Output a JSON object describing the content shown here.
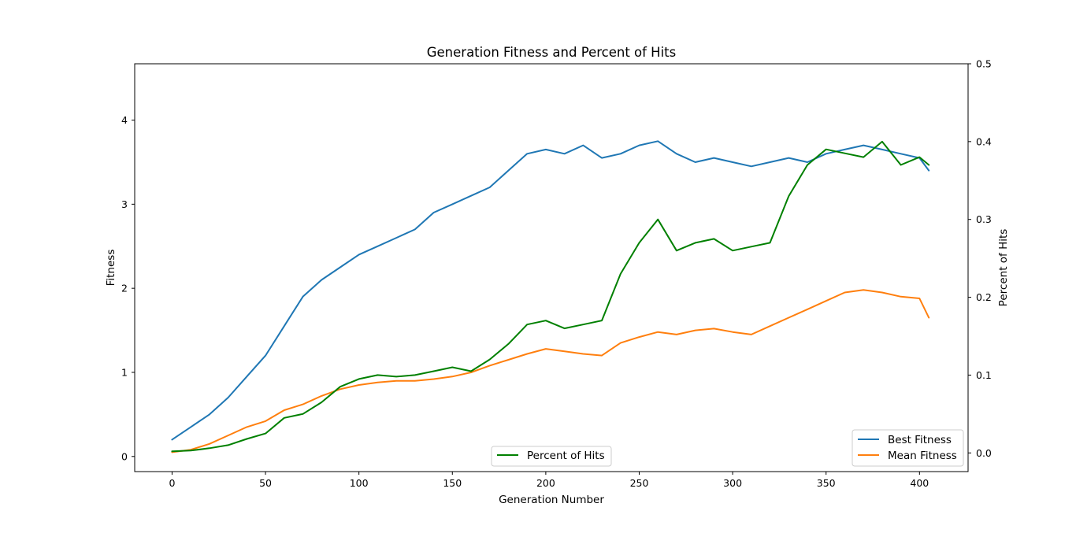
{
  "chart_data": {
    "type": "line",
    "title": "Generation Fitness and Percent of Hits",
    "xlabel": "Generation Number",
    "ylabel": "Fitness",
    "ylabel_right": "Percent of Hits",
    "xlim": [
      -20,
      426
    ],
    "ylim": [
      -0.18,
      4.67
    ],
    "ylim_right": [
      -0.024,
      0.5
    ],
    "x_ticks": [
      0,
      50,
      100,
      150,
      200,
      250,
      300,
      350,
      400
    ],
    "y_ticks": [
      0,
      1,
      2,
      3,
      4
    ],
    "y_ticks_right": [
      0.0,
      0.1,
      0.2,
      0.3,
      0.4,
      0.5
    ],
    "grid": false,
    "legend_left_axis": {
      "placement": "lower-right",
      "entries": [
        "Best Fitness",
        "Mean Fitness"
      ]
    },
    "legend_right_axis": {
      "placement": "lower-center",
      "entries": [
        "Percent of Hits"
      ]
    },
    "series": [
      {
        "name": "Best Fitness",
        "axis": "left",
        "color": "#1f77b4",
        "x": [
          0,
          10,
          20,
          30,
          40,
          50,
          60,
          70,
          80,
          90,
          100,
          110,
          120,
          130,
          140,
          150,
          160,
          170,
          180,
          190,
          200,
          210,
          220,
          230,
          240,
          250,
          260,
          270,
          280,
          290,
          300,
          310,
          320,
          330,
          340,
          350,
          360,
          370,
          380,
          390,
          400,
          405
        ],
        "y": [
          0.2,
          0.35,
          0.5,
          0.7,
          0.95,
          1.2,
          1.55,
          1.9,
          2.1,
          2.25,
          2.4,
          2.5,
          2.6,
          2.7,
          2.9,
          3.0,
          3.1,
          3.2,
          3.4,
          3.6,
          3.65,
          3.6,
          3.7,
          3.55,
          3.6,
          3.7,
          3.75,
          3.6,
          3.5,
          3.55,
          3.5,
          3.45,
          3.5,
          3.55,
          3.5,
          3.6,
          3.65,
          3.7,
          3.65,
          3.6,
          3.55,
          3.4
        ]
      },
      {
        "name": "Mean Fitness",
        "axis": "left",
        "color": "#ff7f0e",
        "x": [
          0,
          10,
          20,
          30,
          40,
          50,
          60,
          70,
          80,
          90,
          100,
          110,
          120,
          130,
          140,
          150,
          160,
          170,
          180,
          190,
          200,
          210,
          220,
          230,
          240,
          250,
          260,
          270,
          280,
          290,
          300,
          310,
          320,
          330,
          340,
          350,
          360,
          370,
          380,
          390,
          400,
          405
        ],
        "y": [
          0.05,
          0.08,
          0.15,
          0.25,
          0.35,
          0.42,
          0.55,
          0.62,
          0.72,
          0.8,
          0.85,
          0.88,
          0.9,
          0.9,
          0.92,
          0.95,
          1.0,
          1.08,
          1.15,
          1.22,
          1.28,
          1.25,
          1.22,
          1.2,
          1.35,
          1.42,
          1.48,
          1.45,
          1.5,
          1.52,
          1.48,
          1.45,
          1.55,
          1.65,
          1.75,
          1.85,
          1.95,
          1.98,
          1.95,
          1.9,
          1.88,
          1.65
        ]
      },
      {
        "name": "Percent of Hits",
        "axis": "right",
        "color": "#008000",
        "x": [
          0,
          10,
          20,
          30,
          40,
          50,
          60,
          70,
          80,
          90,
          100,
          110,
          120,
          130,
          140,
          150,
          160,
          170,
          180,
          190,
          200,
          210,
          220,
          230,
          240,
          250,
          260,
          270,
          280,
          290,
          300,
          310,
          320,
          330,
          340,
          350,
          360,
          370,
          380,
          390,
          400,
          405
        ],
        "y": [
          0.002,
          0.003,
          0.006,
          0.01,
          0.018,
          0.025,
          0.045,
          0.05,
          0.065,
          0.085,
          0.095,
          0.1,
          0.098,
          0.1,
          0.105,
          0.11,
          0.105,
          0.12,
          0.14,
          0.165,
          0.17,
          0.16,
          0.165,
          0.17,
          0.23,
          0.27,
          0.3,
          0.26,
          0.27,
          0.275,
          0.26,
          0.265,
          0.27,
          0.33,
          0.37,
          0.39,
          0.385,
          0.38,
          0.4,
          0.37,
          0.38,
          0.37
        ]
      }
    ]
  }
}
